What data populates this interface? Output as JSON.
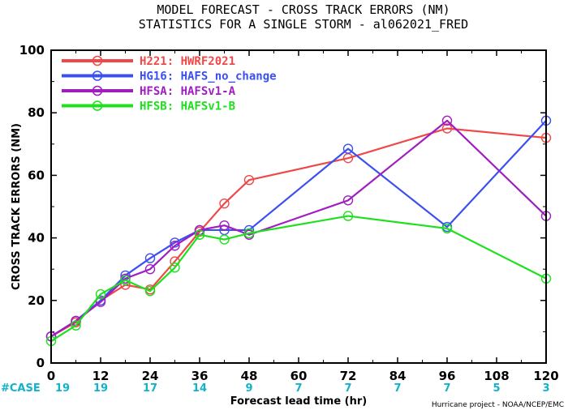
{
  "chart_data": {
    "type": "line",
    "title": "MODEL FORECAST - CROSS TRACK ERRORS (NM)",
    "subtitle": "STATISTICS FOR A SINGLE STORM - al062021_FRED",
    "xlabel": "Forecast lead time (hr)",
    "ylabel": "CROSS TRACK ERRORS (NM)",
    "xlim": [
      0,
      120
    ],
    "ylim": [
      0,
      100
    ],
    "xticks": [
      0,
      12,
      24,
      36,
      48,
      60,
      72,
      84,
      96,
      108,
      120
    ],
    "yticks": [
      0,
      20,
      40,
      60,
      80,
      100
    ],
    "grid": false,
    "legend_position": "top-left",
    "case_label": "#CASE",
    "cases": [
      {
        "x": 0,
        "n": "19"
      },
      {
        "x": 12,
        "n": "19"
      },
      {
        "x": 24,
        "n": "17"
      },
      {
        "x": 36,
        "n": "14"
      },
      {
        "x": 48,
        "n": "9"
      },
      {
        "x": 60,
        "n": "7"
      },
      {
        "x": 72,
        "n": "7"
      },
      {
        "x": 84,
        "n": "7"
      },
      {
        "x": 96,
        "n": "7"
      },
      {
        "x": 108,
        "n": "5"
      },
      {
        "x": 120,
        "n": "3"
      }
    ],
    "series": [
      {
        "name": "H221: HWRF2021",
        "color": "#f04848",
        "x": [
          0,
          6,
          12,
          18,
          24,
          30,
          36,
          42,
          48,
          72,
          96,
          120
        ],
        "y": [
          8.5,
          13,
          20,
          25,
          23.5,
          32.5,
          42,
          51,
          58.5,
          65.5,
          75,
          72
        ]
      },
      {
        "name": "HG16: HAFS_no_change",
        "color": "#3c50f0",
        "x": [
          0,
          6,
          12,
          18,
          24,
          30,
          36,
          42,
          48,
          72,
          96,
          120
        ],
        "y": [
          8.5,
          13.5,
          20,
          28,
          33.5,
          38.5,
          42.5,
          42.5,
          42.5,
          68.5,
          43.5,
          77.5
        ]
      },
      {
        "name": "HFSA: HAFSv1-A",
        "color": "#a01ec0",
        "x": [
          0,
          6,
          12,
          18,
          24,
          30,
          36,
          42,
          48,
          72,
          96,
          120
        ],
        "y": [
          8.5,
          13.5,
          19.5,
          27,
          30,
          37.5,
          42.5,
          44,
          41,
          52,
          77.5,
          47
        ]
      },
      {
        "name": "HFSB: HAFSv1-B",
        "color": "#1ee01e",
        "x": [
          0,
          6,
          12,
          18,
          24,
          30,
          36,
          42,
          48,
          72,
          96,
          120
        ],
        "y": [
          7,
          12,
          22,
          26.5,
          23,
          30.5,
          41,
          39.5,
          41.5,
          47,
          43,
          27
        ]
      }
    ]
  },
  "credit": "Hurricane project - NOAA/NCEP/EMC"
}
